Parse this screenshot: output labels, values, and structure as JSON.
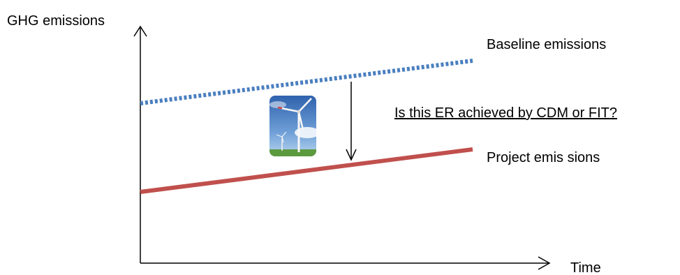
{
  "axes": {
    "y_label": "GHG emissions",
    "x_label": "Time"
  },
  "labels": {
    "baseline": "Baseline emissions",
    "project": "Project emis sions",
    "question": "Is this ER achieved by CDM or FIT?"
  },
  "colors": {
    "baseline_line": "#4a7fc0",
    "project_line": "#c0504d",
    "axis": "#000000",
    "sky_top": "#3a6fb8",
    "sky_bottom": "#a9cdee",
    "grass": "#5c9a3e"
  },
  "icons": {
    "wind_turbine": "wind-turbine-photo-icon"
  }
}
